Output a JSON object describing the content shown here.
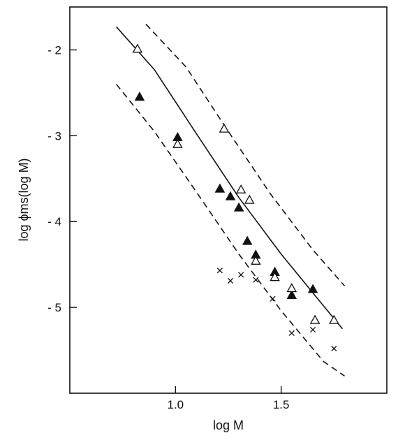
{
  "chart_data": {
    "type": "scatter",
    "title": "",
    "xlabel": "log M",
    "ylabel": "log ϕms(log M)",
    "xlim": [
      0.5,
      2.0
    ],
    "ylim": [
      -6.0,
      -1.5
    ],
    "x_ticks": [
      1.0,
      1.5
    ],
    "x_tick_labels": [
      "1.0",
      "1.5"
    ],
    "y_ticks": [
      -2,
      -3,
      -4,
      -5
    ],
    "y_tick_labels": [
      "- 2",
      "- 3",
      "- 4",
      "- 5"
    ],
    "grid": false,
    "legend": "none",
    "series": [
      {
        "marker": "filled-triangle",
        "points": [
          {
            "x": 0.83,
            "y": -2.55
          },
          {
            "x": 1.01,
            "y": -3.02
          },
          {
            "x": 1.21,
            "y": -3.62
          },
          {
            "x": 1.26,
            "y": -3.71
          },
          {
            "x": 1.3,
            "y": -3.84
          },
          {
            "x": 1.34,
            "y": -4.23
          },
          {
            "x": 1.38,
            "y": -4.39
          },
          {
            "x": 1.47,
            "y": -4.59
          },
          {
            "x": 1.55,
            "y": -4.86
          },
          {
            "x": 1.65,
            "y": -4.79
          }
        ]
      },
      {
        "marker": "open-triangle",
        "points": [
          {
            "x": 0.82,
            "y": -1.99
          },
          {
            "x": 1.01,
            "y": -3.1
          },
          {
            "x": 1.23,
            "y": -2.92
          },
          {
            "x": 1.31,
            "y": -3.63
          },
          {
            "x": 1.35,
            "y": -3.75
          },
          {
            "x": 1.38,
            "y": -4.46
          },
          {
            "x": 1.47,
            "y": -4.65
          },
          {
            "x": 1.55,
            "y": -4.78
          },
          {
            "x": 1.66,
            "y": -5.15
          },
          {
            "x": 1.75,
            "y": -5.15
          }
        ]
      },
      {
        "marker": "cross",
        "points": [
          {
            "x": 1.21,
            "y": -4.57
          },
          {
            "x": 1.26,
            "y": -4.69
          },
          {
            "x": 1.31,
            "y": -4.62
          },
          {
            "x": 1.38,
            "y": -4.68
          },
          {
            "x": 1.46,
            "y": -4.9
          },
          {
            "x": 1.55,
            "y": -5.3
          },
          {
            "x": 1.65,
            "y": -5.26
          },
          {
            "x": 1.75,
            "y": -5.48
          }
        ]
      }
    ],
    "lines": [
      {
        "style": "solid",
        "points": [
          {
            "x": 0.72,
            "y": -1.73
          },
          {
            "x": 0.9,
            "y": -2.23
          },
          {
            "x": 1.1,
            "y": -2.98
          },
          {
            "x": 1.3,
            "y": -3.72
          },
          {
            "x": 1.5,
            "y": -4.38
          },
          {
            "x": 1.7,
            "y": -4.98
          },
          {
            "x": 1.79,
            "y": -5.25
          }
        ]
      },
      {
        "style": "dashed",
        "points": [
          {
            "x": 0.86,
            "y": -1.7
          },
          {
            "x": 1.05,
            "y": -2.2
          },
          {
            "x": 1.25,
            "y": -2.95
          },
          {
            "x": 1.45,
            "y": -3.68
          },
          {
            "x": 1.65,
            "y": -4.33
          },
          {
            "x": 1.8,
            "y": -4.75
          }
        ]
      },
      {
        "style": "dashed",
        "points": [
          {
            "x": 0.72,
            "y": -2.4
          },
          {
            "x": 0.9,
            "y": -2.95
          },
          {
            "x": 1.1,
            "y": -3.66
          },
          {
            "x": 1.3,
            "y": -4.38
          },
          {
            "x": 1.5,
            "y": -5.04
          },
          {
            "x": 1.7,
            "y": -5.63
          },
          {
            "x": 1.8,
            "y": -5.8
          }
        ]
      }
    ]
  }
}
